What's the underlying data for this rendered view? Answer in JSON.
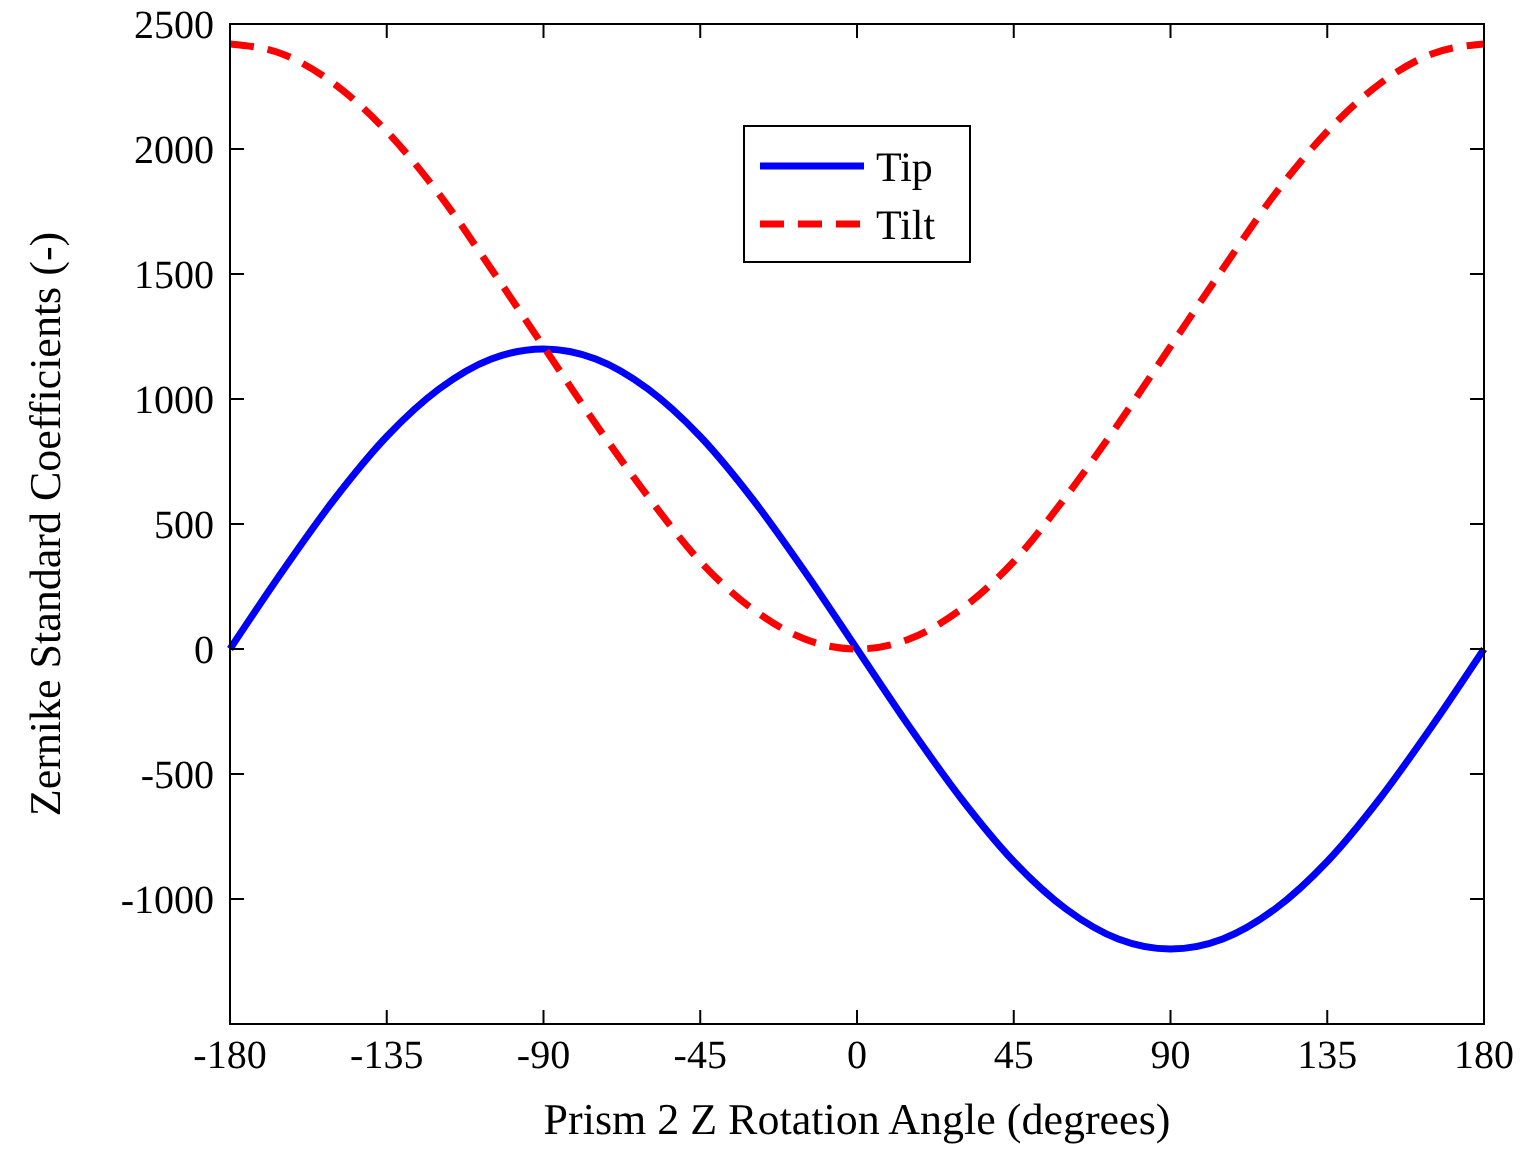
{
  "chart_data": {
    "type": "line",
    "xlabel": "Prism 2 Z Rotation Angle (degrees)",
    "ylabel": "Zernike Standard Coefficients (-)",
    "x": [
      -180,
      -165,
      -150,
      -135,
      -120,
      -105,
      -90,
      -75,
      -60,
      -45,
      -30,
      -15,
      0,
      15,
      30,
      45,
      60,
      75,
      90,
      105,
      120,
      135,
      150,
      165,
      180
    ],
    "series": [
      {
        "name": "Tip",
        "color": "#0000ff",
        "line_style": "solid",
        "values": [
          0,
          310,
          600,
          850,
          1040,
          1160,
          1200,
          1160,
          1040,
          850,
          600,
          310,
          0,
          -310,
          -600,
          -850,
          -1040,
          -1160,
          -1200,
          -1160,
          -1040,
          -850,
          -600,
          -310,
          0
        ]
      },
      {
        "name": "Tilt",
        "color": "#ff0000",
        "line_style": "dashed",
        "values": [
          2420,
          2380,
          2260,
          2070,
          1820,
          1520,
          1210,
          900,
          610,
          350,
          160,
          40,
          0,
          40,
          160,
          350,
          610,
          900,
          1210,
          1520,
          1820,
          2070,
          2260,
          2380,
          2420
        ]
      }
    ],
    "xlim": [
      -180,
      180
    ],
    "xticks": [
      -180,
      -135,
      -90,
      -45,
      0,
      45,
      90,
      135,
      180
    ],
    "ylim": [
      -1500,
      2500
    ],
    "yticks": [
      -1000,
      -500,
      0,
      500,
      1000,
      1500,
      2000,
      2500
    ],
    "grid": false,
    "legend": "top",
    "marker": "none"
  }
}
